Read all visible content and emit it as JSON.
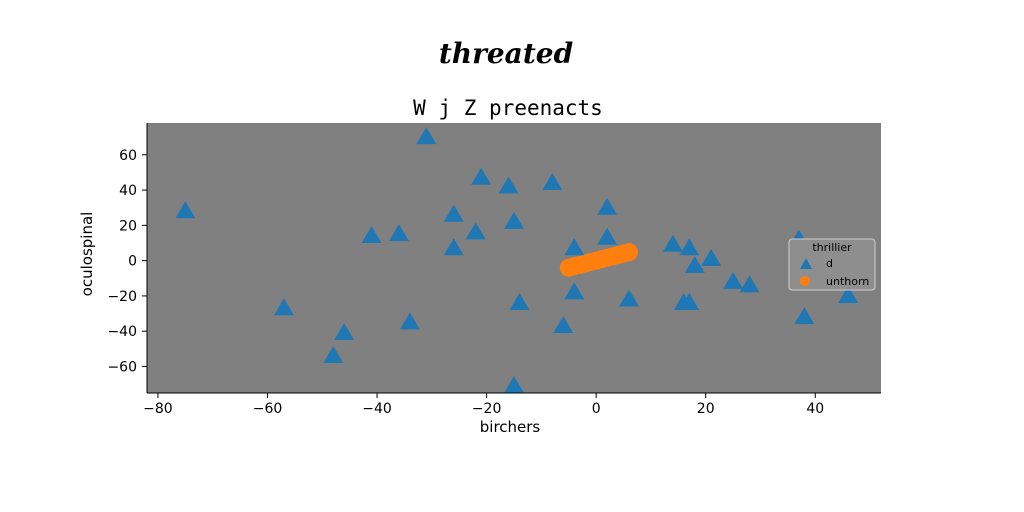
{
  "suptitle": "threated",
  "colors": {
    "plot_background": "#808080",
    "triangle_series": "#1f77b4",
    "circle_series": "#ff7f0e",
    "grid": "none"
  },
  "chart_data": {
    "type": "scatter",
    "title": "W j Z preenacts",
    "xlabel": "birchers",
    "ylabel": "oculospinal",
    "xlim": [
      -82,
      52
    ],
    "ylim": [
      -75,
      78
    ],
    "xticks": [
      -80,
      -60,
      -40,
      -20,
      0,
      20,
      40
    ],
    "yticks": [
      -60,
      -40,
      -20,
      0,
      20,
      40,
      60
    ],
    "grid": false,
    "legend": {
      "placement": "center-right",
      "title": "thrillier",
      "entries": [
        "d",
        "unthorn"
      ]
    },
    "series": [
      {
        "name": "d",
        "marker": "triangle",
        "x": [
          -75,
          -31,
          -21,
          -16,
          -8,
          -26,
          -15,
          2,
          -41,
          -36,
          -22,
          -26,
          2,
          -4,
          14,
          17,
          37,
          -57,
          -46,
          -48,
          -34,
          -15,
          -14,
          -4,
          -6,
          6,
          16,
          17,
          18,
          21,
          25,
          28,
          38,
          46
        ],
        "y": [
          28,
          70,
          47,
          42,
          44,
          26,
          22,
          30,
          14,
          15,
          16,
          7,
          13,
          7,
          9,
          7,
          12,
          -27,
          -41,
          -54,
          -35,
          -71,
          -24,
          -18,
          -37,
          -22,
          -24,
          -24,
          -3,
          1,
          -12,
          -14,
          -32,
          -20
        ]
      },
      {
        "name": "unthorn",
        "marker": "circle",
        "x": [
          -5,
          -4,
          -3,
          -2,
          -1,
          0,
          1,
          2,
          3,
          4,
          5,
          6
        ],
        "y": [
          -4,
          -3.2,
          -2.4,
          -1.6,
          -0.8,
          0,
          0.8,
          1.6,
          2.4,
          3.2,
          4,
          4.8
        ]
      }
    ]
  }
}
